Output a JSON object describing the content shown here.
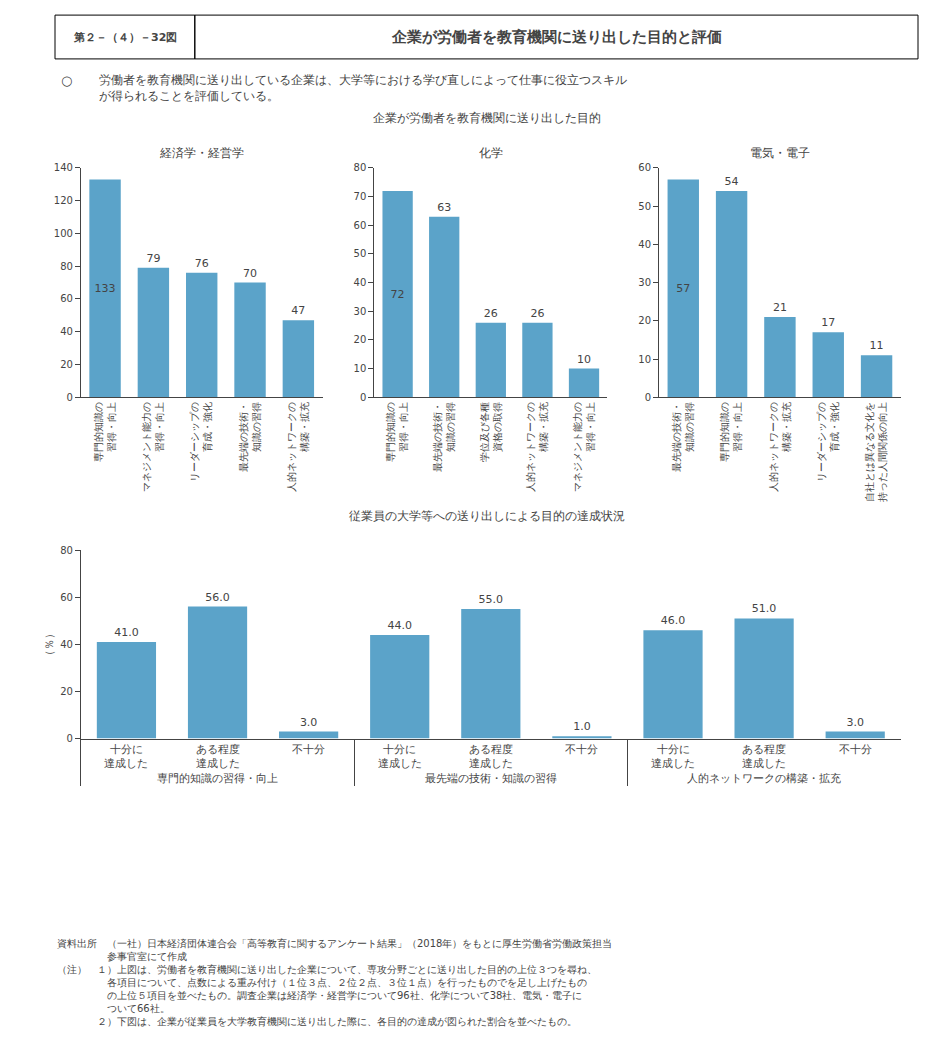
{
  "title": "企業が労働者を教育機関に送り出した目的と評価",
  "subtitle": "　労働者を教育機関に送り出している企業は、大学等における学び直しによって仕事に役立つスキル\n　が得られることを評価している。",
  "annotations": [
    "第２－（４）－32図",
    "○",
    "企業が労働者を教育機関に送り出した目的",
    "従業員の大学等への送り出しによる目的の達成状況"
  ],
  "footnotes": [
    "資料出所　（一社）日本経済団体連合会「高等教育に関するアンケート結果」（2018年）をもとに厚生労働省労働政策担当",
    "　　　　　参事官室にて作成",
    "（注）　１）上図は、労働者を教育機関に送り出した企業について、専攻分野ごとに送り出した目的の上位３つを尋ね、",
    "　　　　　各項目について、点数による重み付け（１位３点、２位２点、３位１点）を行ったものでを足し上げたもの",
    "　　　　　の上位５項目を並べたもの。調査企業は経済学・経営学について96社、化学について38社、電気・電子に",
    "　　　　　ついて66社。",
    "　　　　２）下図は、企業が従業員を大学教育機関に送り出した際に、各目的の達成が図られた割合を並べたもの。"
  ],
  "chart_data": [
    {
      "type": "bar",
      "title": "経済学・経営学",
      "categories": [
        "専門的知識の\n習得・向上",
        "マネジメント能力の\n習得・向上",
        "リーダーシップの\n育成・強化",
        "最先端の技術・\n知識の習得",
        "人的ネットワークの\n構築・拡充"
      ],
      "values": [
        133,
        79,
        76,
        70,
        47
      ],
      "color": "#5ba3c9",
      "ylim": [
        0,
        140
      ],
      "yticks": [
        0,
        20,
        40,
        60,
        80,
        100,
        120,
        140
      ],
      "grid": false,
      "data_labels": true
    },
    {
      "type": "bar",
      "title": "化学",
      "categories": [
        "専門的知識の\n習得・向上",
        "最先端の技術・\n知識の習得",
        "学位及び各種\n資格の取得",
        "人的ネットワークの\n構築・拡充",
        "マネジメント能力の\n習得・向上"
      ],
      "values": [
        72,
        63,
        26,
        26,
        10
      ],
      "color": "#5ba3c9",
      "ylim": [
        0,
        80
      ],
      "yticks": [
        0,
        10,
        20,
        30,
        40,
        50,
        60,
        70,
        80
      ],
      "grid": false,
      "data_labels": true
    },
    {
      "type": "bar",
      "title": "電気・電子",
      "categories": [
        "最先端の技術・\n知識の習得",
        "専門的知識の\n習得・向上",
        "人的ネットワークの\n構築・拡充",
        "リーダーシップの\n育成・強化",
        "自社とは異なる文化を\n持った人間関係の向上"
      ],
      "values": [
        57,
        54,
        21,
        17,
        11
      ],
      "color": "#5ba3c9",
      "ylim": [
        0,
        60
      ],
      "yticks": [
        0,
        10,
        20,
        30,
        40,
        50,
        60
      ],
      "grid": false,
      "data_labels": true
    },
    {
      "type": "bar",
      "groups": [
        "専門的知識の習得・向上",
        "最先端の技術・知識の習得",
        "人的ネットワークの構築・拡充"
      ],
      "categories": [
        "十分に\n達成した",
        "ある程度\n達成した",
        "不十分"
      ],
      "values": [
        [
          41.0,
          56.0,
          3.0
        ],
        [
          44.0,
          55.0,
          1.0
        ],
        [
          46.0,
          51.0,
          3.0
        ]
      ],
      "value_labels": [
        [
          "41.0",
          "56.0",
          "3.0"
        ],
        [
          "44.0",
          "55.0",
          "1.0"
        ],
        [
          "46.0",
          "51.0",
          "3.0"
        ]
      ],
      "ylabel": "（％）",
      "color": "#5ba3c9",
      "ylim": [
        0,
        80
      ],
      "yticks": [
        0,
        20,
        40,
        60,
        80
      ],
      "grid": false,
      "data_labels": true
    }
  ]
}
